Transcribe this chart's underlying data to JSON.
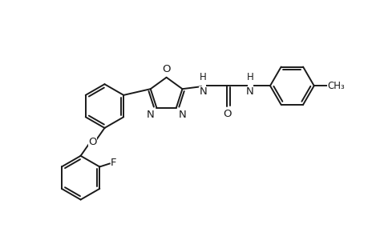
{
  "bg_color": "#ffffff",
  "line_color": "#1a1a1a",
  "line_width": 1.4,
  "font_size": 9.5,
  "fig_width": 4.6,
  "fig_height": 3.0,
  "dpi": 100,
  "xlim": [
    0,
    9.2
  ],
  "ylim": [
    0,
    6.0
  ]
}
